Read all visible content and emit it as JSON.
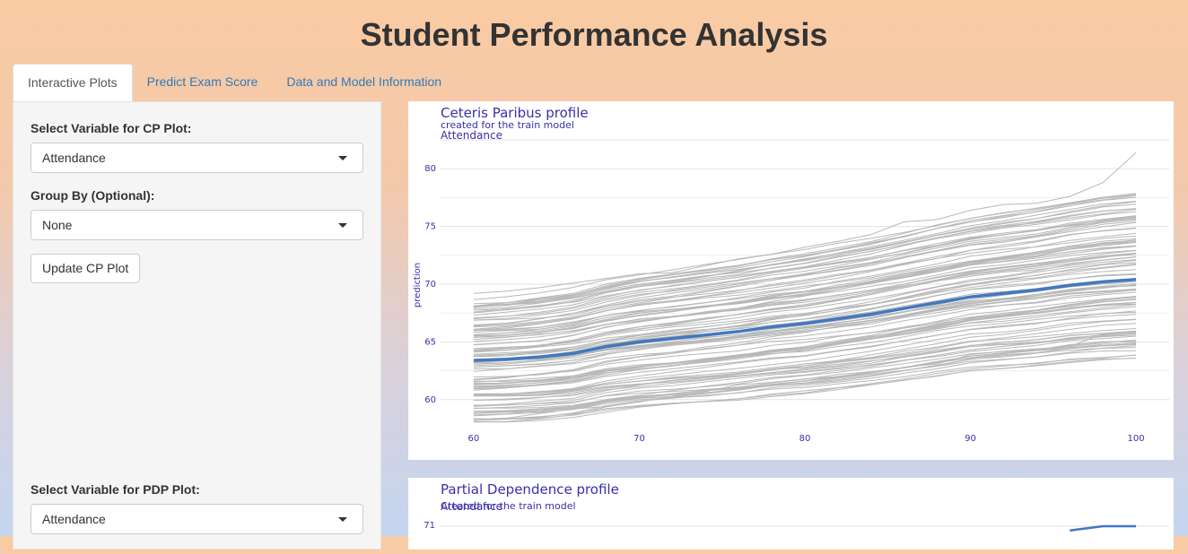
{
  "app": {
    "title": "Student Performance Analysis"
  },
  "tabs": [
    {
      "label": "Interactive Plots",
      "active": true
    },
    {
      "label": "Predict Exam Score",
      "active": false
    },
    {
      "label": "Data and Model Information",
      "active": false
    }
  ],
  "sidebar": {
    "cp_variable_label": "Select Variable for CP Plot:",
    "cp_variable_value": "Attendance",
    "group_by_label": "Group By (Optional):",
    "group_by_value": "None",
    "update_button": "Update CP Plot",
    "pdp_variable_label": "Select Variable for PDP Plot:",
    "pdp_variable_value": "Attendance"
  },
  "colors": {
    "accent": "#337ab7",
    "profile_line": "#4378bf",
    "individual_lines": "#b8b8b8",
    "plot_text": "#3a2fa8"
  },
  "cp_plot": {
    "title": "Ceteris Paribus profile",
    "subtitle": "created for the train model",
    "variable": "Attendance",
    "ylabel": "prediction"
  },
  "pdp_plot": {
    "title": "Partial Dependence profile",
    "subtitle": "Created for the train model",
    "variable": "Attendance",
    "y_tick_visible": "71"
  },
  "chart_data": [
    {
      "type": "line",
      "title": "Ceteris Paribus profile",
      "subtitle": "created for the train model",
      "panel_label": "Attendance",
      "xlabel": "",
      "ylabel": "prediction",
      "xlim": [
        58,
        102
      ],
      "ylim": [
        57.5,
        82.5
      ],
      "x_ticks": [
        60,
        70,
        80,
        90,
        100
      ],
      "y_ticks": [
        60,
        65,
        70,
        75,
        80
      ],
      "grid": true,
      "x": [
        60,
        62,
        64,
        66,
        68,
        70,
        72,
        74,
        76,
        78,
        80,
        82,
        84,
        86,
        88,
        90,
        92,
        94,
        96,
        98,
        100
      ],
      "series": [
        {
          "role": "average profile",
          "values": [
            63.4,
            63.5,
            63.7,
            64.0,
            64.6,
            65.0,
            65.3,
            65.6,
            65.9,
            66.3,
            66.6,
            67.0,
            67.4,
            67.9,
            68.4,
            68.9,
            69.2,
            69.5,
            69.9,
            70.2,
            70.4
          ]
        }
      ],
      "individual_profiles": {
        "count_approx": 100,
        "range_at_x60": [
          58.3,
          69.2
        ],
        "range_at_x100": [
          65.8,
          81.4
        ]
      }
    },
    {
      "type": "line",
      "title": "Partial Dependence profile",
      "subtitle": "Created for the train model",
      "panel_label": "Attendance",
      "y_ticks": [
        71
      ],
      "grid": true,
      "x": [
        96,
        98,
        100
      ],
      "series": [
        {
          "role": "average profile",
          "values": [
            70.6,
            71.0,
            71.0
          ]
        }
      ]
    }
  ]
}
